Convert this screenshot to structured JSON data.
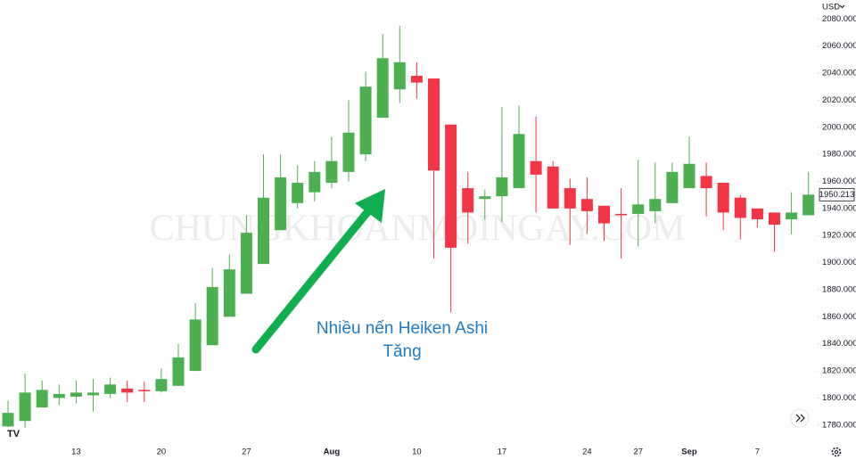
{
  "chart_data": {
    "type": "candlestick",
    "currency": "USD",
    "watermark": "CHUNGKHOANMOINGAY.COM",
    "annotation": [
      "Nhiều nến Heiken Ashi",
      "Tăng"
    ],
    "x": [
      null,
      null,
      null,
      null,
      "13",
      null,
      null,
      null,
      null,
      "20",
      null,
      null,
      null,
      null,
      "27",
      null,
      null,
      null,
      null,
      "Aug",
      null,
      null,
      null,
      null,
      "10",
      null,
      null,
      null,
      null,
      "17",
      null,
      null,
      null,
      null,
      "24",
      null,
      null,
      "27",
      null,
      null,
      "Sep",
      null,
      null,
      null,
      "7",
      null,
      null,
      null
    ],
    "open": [
      1779,
      1783,
      1793,
      1800,
      1801,
      1802,
      1803,
      1807,
      1806,
      1805,
      1809,
      1820,
      1839,
      1860,
      1877,
      1899,
      1924,
      1944,
      1952,
      1959,
      1967,
      1980,
      2007,
      2028,
      2038,
      2036,
      2002,
      1955,
      1947,
      1949,
      1955,
      1975,
      1971,
      1955,
      1947,
      1942,
      1936,
      1936,
      1938,
      1944,
      1955,
      1964,
      1959,
      1948,
      1940,
      1937,
      1932,
      1935
    ],
    "high": [
      1798,
      1818,
      1813,
      1810,
      1813,
      1814,
      1815,
      1813,
      1812,
      1822,
      1840,
      1870,
      1896,
      1906,
      1935,
      1980,
      1980,
      1972,
      1975,
      1993,
      2020,
      2041,
      2069,
      2075,
      2048,
      2036,
      2002,
      1967,
      1954,
      2015,
      2016,
      2008,
      1975,
      1962,
      1963,
      1942,
      1955,
      1976,
      1974,
      1974,
      1993,
      1974,
      1959,
      1950,
      1940,
      1937,
      1952,
      1967
    ],
    "low": [
      1774,
      1778,
      1793,
      1795,
      1796,
      1790,
      1800,
      1797,
      1797,
      1804,
      1809,
      1820,
      1839,
      1860,
      1877,
      1899,
      1924,
      1940,
      1945,
      1955,
      1960,
      1975,
      2007,
      2018,
      2021,
      1903,
      1863,
      1914,
      1932,
      1930,
      1955,
      1937,
      1940,
      1913,
      1921,
      1916,
      1903,
      1912,
      1929,
      1944,
      1955,
      1934,
      1924,
      1917,
      1926,
      1908,
      1921,
      1935
    ],
    "close": [
      1789,
      1804,
      1806,
      1803,
      1804,
      1804,
      1810,
      1804,
      1805,
      1814,
      1830,
      1858,
      1882,
      1895,
      1922,
      1948,
      1963,
      1959,
      1967,
      1975,
      1996,
      2030,
      2051,
      2048,
      2033,
      1968,
      1911,
      1937,
      1949,
      1963,
      1995,
      1965,
      1940,
      1940,
      1938,
      1929,
      1935,
      1943,
      1947,
      1967,
      1973,
      1955,
      1937,
      1933,
      1932,
      1928,
      1937,
      1950.213
    ],
    "last_price": 1950.213,
    "up_color": "#4caf50",
    "down_color": "#f23645",
    "ylim": [
      1770,
      2094
    ],
    "yticks": [
      {
        "value": 1780,
        "label": "1780.000"
      },
      {
        "value": 1800,
        "label": "1800.000"
      },
      {
        "value": 1820,
        "label": "1820.000"
      },
      {
        "value": 1840,
        "label": "1840.000"
      },
      {
        "value": 1860,
        "label": "1860.000"
      },
      {
        "value": 1880,
        "label": "1880.000"
      },
      {
        "value": 1900,
        "label": "1900.000"
      },
      {
        "value": 1920,
        "label": "1920.000"
      },
      {
        "value": 1940,
        "label": "1940.000"
      },
      {
        "value": 1960,
        "label": "1960.000"
      },
      {
        "value": 1980,
        "label": "1980.000"
      },
      {
        "value": 2000,
        "label": "2000.000"
      },
      {
        "value": 2020,
        "label": "2020.000"
      },
      {
        "value": 2040,
        "label": "2040.000"
      },
      {
        "value": 2060,
        "label": "2060.000"
      },
      {
        "value": 2080,
        "label": "2080.000"
      }
    ],
    "grid": false
  }
}
